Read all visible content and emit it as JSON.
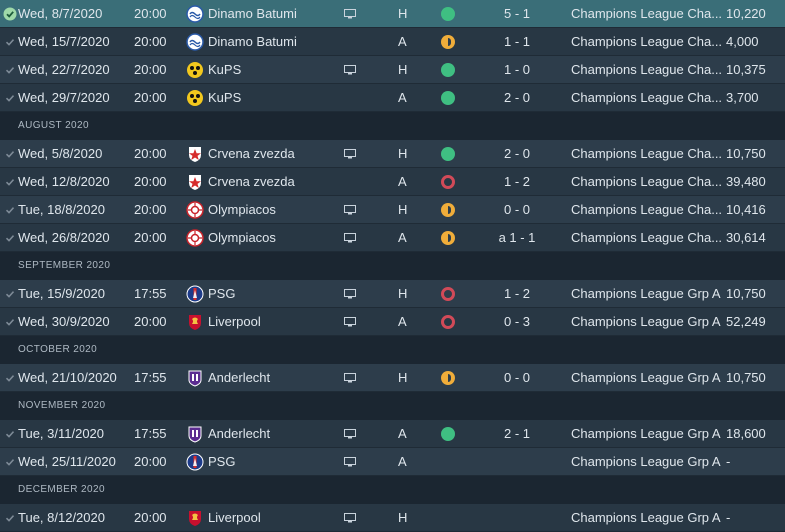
{
  "sections": [
    {
      "header": "",
      "matches": [
        {
          "date": "Wed, 8/7/2020",
          "time": "20:00",
          "crest": "dinamo-batumi-crest",
          "opponent": "Dinamo Batumi",
          "tv": true,
          "venue": "H",
          "result": "win",
          "score": "5 - 1",
          "competition": "Champions League Cha...",
          "attendance": "10,220",
          "selected": true
        },
        {
          "date": "Wed, 15/7/2020",
          "time": "20:00",
          "crest": "dinamo-batumi-crest",
          "opponent": "Dinamo Batumi",
          "tv": false,
          "venue": "A",
          "result": "draw",
          "score": "1 - 1",
          "competition": "Champions League Cha...",
          "attendance": "4,000"
        },
        {
          "date": "Wed, 22/7/2020",
          "time": "20:00",
          "crest": "kups-crest",
          "opponent": "KuPS",
          "tv": true,
          "venue": "H",
          "result": "win",
          "score": "1 - 0",
          "competition": "Champions League Cha...",
          "attendance": "10,375"
        },
        {
          "date": "Wed, 29/7/2020",
          "time": "20:00",
          "crest": "kups-crest",
          "opponent": "KuPS",
          "tv": false,
          "venue": "A",
          "result": "win",
          "score": "2 - 0",
          "competition": "Champions League Cha...",
          "attendance": "3,700"
        }
      ]
    },
    {
      "header": "AUGUST 2020",
      "matches": [
        {
          "date": "Wed, 5/8/2020",
          "time": "20:00",
          "crest": "crvena-zvezda-crest",
          "opponent": "Crvena zvezda",
          "tv": true,
          "venue": "H",
          "result": "win",
          "score": "2 - 0",
          "competition": "Champions League Cha...",
          "attendance": "10,750"
        },
        {
          "date": "Wed, 12/8/2020",
          "time": "20:00",
          "crest": "crvena-zvezda-crest",
          "opponent": "Crvena zvezda",
          "tv": false,
          "venue": "A",
          "result": "loss",
          "score": "1 - 2",
          "competition": "Champions League Cha...",
          "attendance": "39,480"
        },
        {
          "date": "Tue, 18/8/2020",
          "time": "20:00",
          "crest": "olympiacos-crest",
          "opponent": "Olympiacos",
          "tv": true,
          "venue": "H",
          "result": "draw",
          "score": "0 - 0",
          "competition": "Champions League Cha...",
          "attendance": "10,416"
        },
        {
          "date": "Wed, 26/8/2020",
          "time": "20:00",
          "crest": "olympiacos-crest",
          "opponent": "Olympiacos",
          "tv": true,
          "venue": "A",
          "result": "draw",
          "score": "a 1 - 1",
          "competition": "Champions League Cha...",
          "attendance": "30,614"
        }
      ]
    },
    {
      "header": "SEPTEMBER 2020",
      "matches": [
        {
          "date": "Tue, 15/9/2020",
          "time": "17:55",
          "crest": "psg-crest",
          "opponent": "PSG",
          "tv": true,
          "venue": "H",
          "result": "loss",
          "score": "1 - 2",
          "competition": "Champions League Grp A",
          "attendance": "10,750"
        },
        {
          "date": "Wed, 30/9/2020",
          "time": "20:00",
          "crest": "liverpool-crest",
          "opponent": "Liverpool",
          "tv": true,
          "venue": "A",
          "result": "loss",
          "score": "0 - 3",
          "competition": "Champions League Grp A",
          "attendance": "52,249"
        }
      ]
    },
    {
      "header": "OCTOBER 2020",
      "matches": [
        {
          "date": "Wed, 21/10/2020",
          "time": "17:55",
          "crest": "anderlecht-crest",
          "opponent": "Anderlecht",
          "tv": true,
          "venue": "H",
          "result": "draw",
          "score": "0 - 0",
          "competition": "Champions League Grp A",
          "attendance": "10,750"
        }
      ]
    },
    {
      "header": "NOVEMBER 2020",
      "matches": [
        {
          "date": "Tue, 3/11/2020",
          "time": "17:55",
          "crest": "anderlecht-crest",
          "opponent": "Anderlecht",
          "tv": true,
          "venue": "A",
          "result": "win",
          "score": "2 - 1",
          "competition": "Champions League Grp A",
          "attendance": "18,600"
        },
        {
          "date": "Wed, 25/11/2020",
          "time": "20:00",
          "crest": "psg-crest",
          "opponent": "PSG",
          "tv": true,
          "venue": "A",
          "result": "",
          "score": "",
          "competition": "Champions League Grp A",
          "attendance": "-"
        }
      ]
    },
    {
      "header": "DECEMBER 2020",
      "matches": [
        {
          "date": "Tue, 8/12/2020",
          "time": "20:00",
          "crest": "liverpool-crest",
          "opponent": "Liverpool",
          "tv": true,
          "venue": "H",
          "result": "",
          "score": "",
          "competition": "Champions League Grp A",
          "attendance": "-"
        }
      ]
    }
  ],
  "colors": {
    "win": "#3fbf82",
    "draw": "#f0ad3a",
    "loss": "#d14a58",
    "row_even": "#2d3d4b",
    "row_odd": "#283744",
    "selected": "#3a6e78",
    "background": "#1b2631"
  }
}
